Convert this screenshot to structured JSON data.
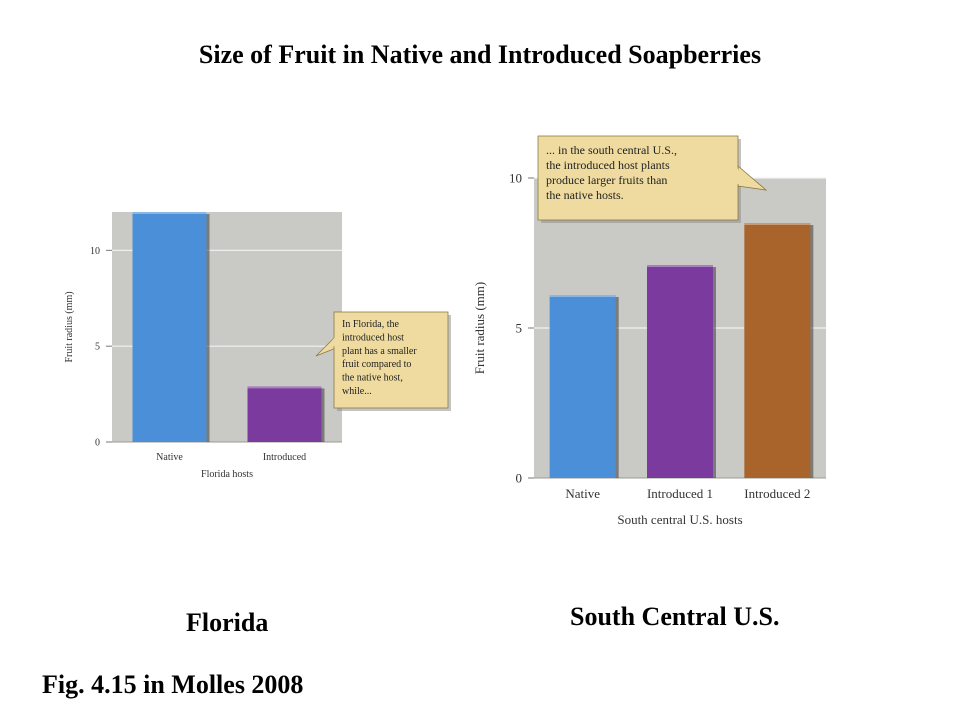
{
  "title": "Size of Fruit in Native and Introduced Soapberries",
  "captions": {
    "florida": "Florida",
    "south_central": "South Central U.S.",
    "figure_ref": "Fig. 4.15 in Molles 2008"
  },
  "colors": {
    "plot_bg": "#c9c9c5",
    "native": "#4a8fd8",
    "introduced_purple": "#7b3a9e",
    "introduced_brown": "#a8642a",
    "callout_bg": "#efdba0",
    "gridline": "#f2f2f2"
  },
  "chart_data": [
    {
      "type": "bar",
      "categories": [
        "Native",
        "Introduced"
      ],
      "values": [
        12,
        2.9
      ],
      "xlabel": "Florida hosts",
      "ylabel": "Fruit radius (mm)",
      "ylim": [
        0,
        12
      ],
      "yticks": [
        "0",
        "5",
        "10"
      ],
      "grid": true,
      "bar_colors": [
        "#4a8fd8",
        "#7b3a9e"
      ],
      "annotation": [
        "In Florida, the",
        "introduced host",
        "plant has a smaller",
        "fruit compared to",
        "the native host,",
        "while..."
      ]
    },
    {
      "type": "bar",
      "categories": [
        "Native",
        "Introduced 1",
        "Introduced 2"
      ],
      "values": [
        6.1,
        7.1,
        8.5
      ],
      "xlabel": "South central U.S. hosts",
      "ylabel": "Fruit radius (mm)",
      "ylim": [
        0,
        10
      ],
      "yticks": [
        "0",
        "5",
        "10"
      ],
      "grid": true,
      "bar_colors": [
        "#4a8fd8",
        "#7b3a9e",
        "#a8642a"
      ],
      "annotation": [
        "... in the south central U.S.,",
        "the introduced host plants",
        "produce larger fruits than",
        "the native hosts."
      ]
    }
  ]
}
